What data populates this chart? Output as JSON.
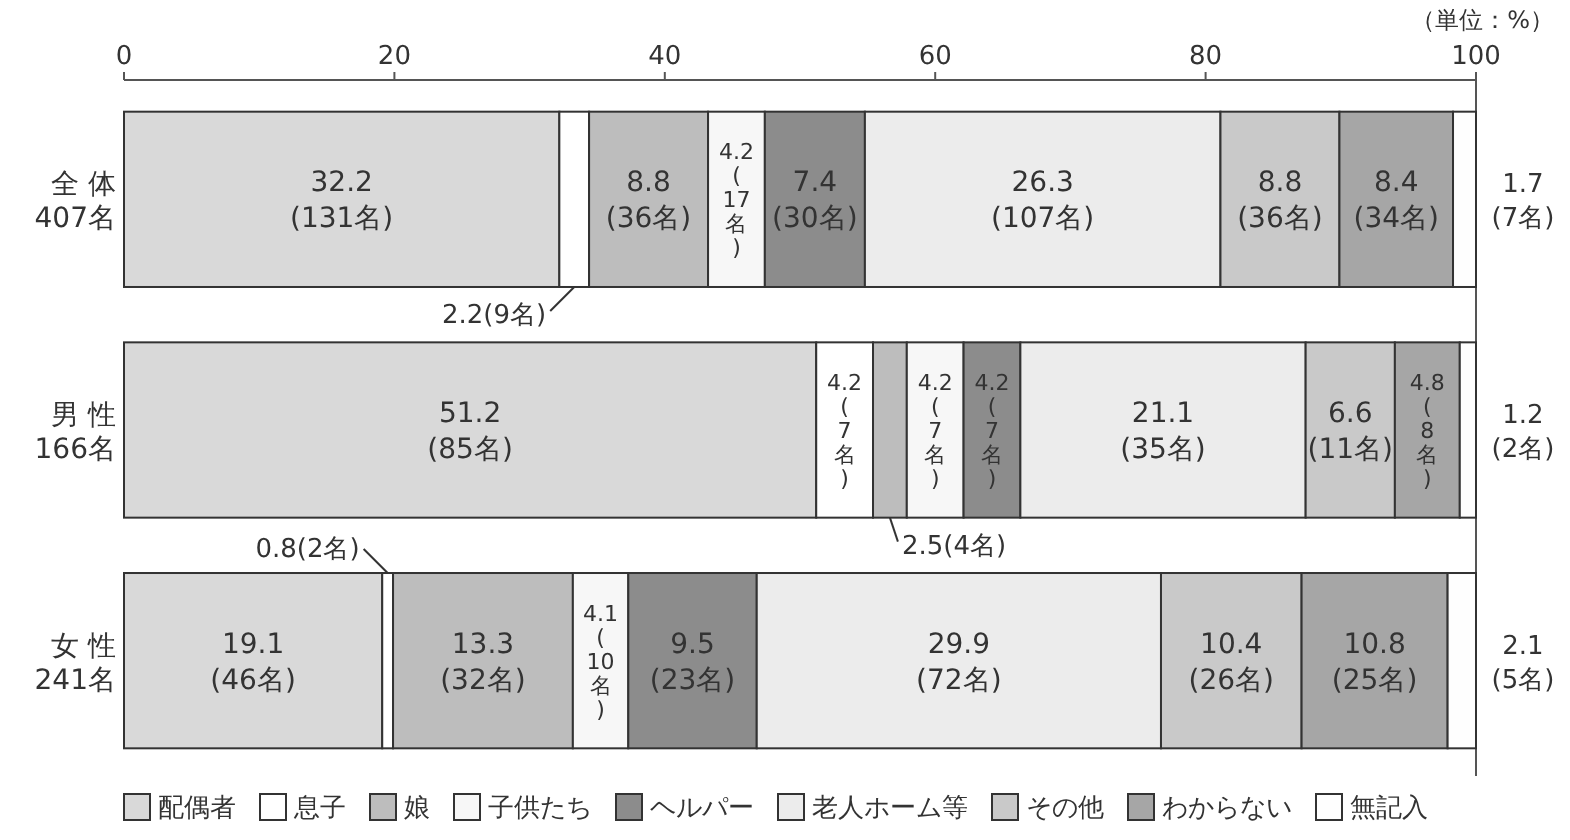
{
  "chart_data": {
    "type": "bar",
    "orientation": "horizontal",
    "stacked": true,
    "categories": [
      "全 体\n407名",
      "男 性\n166名",
      "女 性\n241名"
    ],
    "xlim": [
      0,
      100
    ],
    "xticks": [
      0,
      20,
      40,
      60,
      80,
      100
    ],
    "legend": "bottom",
    "grid": false,
    "annotations": [
      "（単位：%）"
    ],
    "series": [
      {
        "name": "配偶者",
        "color": "#d9d9d9",
        "values": [
          32.2,
          51.2,
          19.1
        ],
        "value_labels": [
          "32.2\n(131名)",
          "51.2\n(85名)",
          "19.1\n(46名)"
        ]
      },
      {
        "name": "息子",
        "color": "#ffffff",
        "values": [
          2.2,
          4.2,
          0.8
        ],
        "value_labels": [
          "2.2(9名)",
          "4.2\n(7名)",
          "0.8(2名)"
        ]
      },
      {
        "name": "娘",
        "color": "#bdbdbd",
        "values": [
          8.8,
          2.5,
          13.3
        ],
        "value_labels": [
          "8.8\n(36名)",
          "2.5(4名)",
          "13.3\n(32名)"
        ]
      },
      {
        "name": "子供たち",
        "color": "#f7f7f7",
        "values": [
          4.2,
          4.2,
          4.1
        ],
        "value_labels": [
          "4.2\n(17名)",
          "4.2\n(7名)",
          "4.1\n(10名)"
        ]
      },
      {
        "name": "ヘルパー",
        "color": "#8c8c8c",
        "values": [
          7.4,
          4.2,
          9.5
        ],
        "value_labels": [
          "7.4\n(30名)",
          "4.2\n(7名)",
          "9.5\n(23名)"
        ]
      },
      {
        "name": "老人ホーム等",
        "color": "#ececec",
        "values": [
          26.3,
          21.1,
          29.9
        ],
        "value_labels": [
          "26.3\n(107名)",
          "21.1\n(35名)",
          "29.9\n(72名)"
        ]
      },
      {
        "name": "その他",
        "color": "#c9c9c9",
        "values": [
          8.8,
          6.6,
          10.4
        ],
        "value_labels": [
          "8.8\n(36名)",
          "6.6\n(11名)",
          "10.4\n(26名)"
        ]
      },
      {
        "name": "わからない",
        "color": "#a6a6a6",
        "values": [
          8.4,
          4.8,
          10.8
        ],
        "value_labels": [
          "8.4\n(34名)",
          "4.8\n(8名)",
          "10.8\n(25名)"
        ]
      },
      {
        "name": "無記入",
        "color": "#fefefe",
        "values": [
          1.7,
          1.2,
          2.1
        ],
        "value_labels": [
          "1.7\n(7名)",
          "1.2\n(2名)",
          "2.1\n(5名)"
        ]
      }
    ]
  }
}
